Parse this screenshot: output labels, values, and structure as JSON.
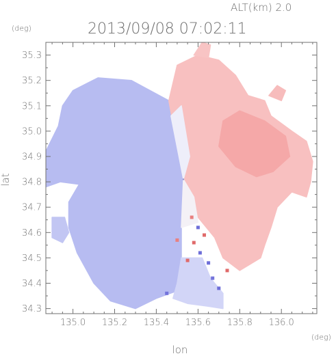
{
  "chart_data": {
    "type": "heatmap",
    "title": "2013/09/08 07:02:11",
    "altitude_label": "ALT(km) 2.0",
    "xlabel": "lon",
    "ylabel": "lat",
    "x_unit": "(deg)",
    "y_unit": "(deg)",
    "xlim": [
      134.87,
      136.17
    ],
    "ylim": [
      34.28,
      35.35
    ],
    "x_ticks": [
      135.0,
      135.2,
      135.4,
      135.6,
      135.8,
      136.0
    ],
    "y_ticks": [
      34.3,
      34.4,
      34.5,
      34.6,
      34.7,
      34.8,
      34.9,
      35.0,
      35.1,
      35.2,
      35.3
    ],
    "grid": false,
    "legend": "none",
    "radar_center": {
      "lon": 135.53,
      "lat": 34.81
    },
    "colors": {
      "approaching_blue": "#a9b0ee",
      "receding_red": "#f5a8a8",
      "near_zero": "#f2f2fa",
      "axes": "#6f6f6f"
    },
    "echo_regions": [
      {
        "name": "blue-west-main",
        "color": "#b7bcf1",
        "points": [
          [
            135.0,
            35.16
          ],
          [
            135.12,
            35.21
          ],
          [
            135.28,
            35.2
          ],
          [
            135.46,
            35.12
          ],
          [
            135.53,
            34.81
          ],
          [
            135.52,
            34.7
          ],
          [
            135.52,
            34.5
          ],
          [
            135.5,
            34.37
          ],
          [
            135.4,
            34.34
          ],
          [
            135.3,
            34.3
          ],
          [
            135.18,
            34.33
          ],
          [
            135.1,
            34.4
          ],
          [
            135.02,
            34.52
          ],
          [
            134.98,
            34.62
          ],
          [
            134.98,
            34.72
          ],
          [
            135.03,
            34.79
          ],
          [
            134.94,
            34.8
          ],
          [
            134.87,
            34.78
          ],
          [
            134.87,
            34.92
          ],
          [
            134.93,
            35.02
          ],
          [
            134.95,
            35.1
          ]
        ]
      },
      {
        "name": "blue-south-pale",
        "color": "#d2d5f7",
        "points": [
          [
            135.52,
            34.5
          ],
          [
            135.62,
            34.5
          ],
          [
            135.66,
            34.42
          ],
          [
            135.72,
            34.36
          ],
          [
            135.72,
            34.3
          ],
          [
            135.64,
            34.31
          ],
          [
            135.55,
            34.32
          ],
          [
            135.48,
            34.34
          ],
          [
            135.5,
            34.4
          ]
        ]
      },
      {
        "name": "blue-sw-fragment",
        "color": "#c2c6f3",
        "points": [
          [
            134.9,
            34.66
          ],
          [
            134.96,
            34.66
          ],
          [
            134.98,
            34.6
          ],
          [
            134.95,
            34.56
          ],
          [
            134.9,
            34.58
          ]
        ]
      },
      {
        "name": "red-east-main",
        "color": "#f8c0c0",
        "points": [
          [
            135.46,
            35.12
          ],
          [
            135.5,
            35.26
          ],
          [
            135.6,
            35.3
          ],
          [
            135.7,
            35.28
          ],
          [
            135.78,
            35.22
          ],
          [
            135.84,
            35.14
          ],
          [
            135.92,
            35.12
          ],
          [
            135.95,
            35.06
          ],
          [
            136.05,
            35.0
          ],
          [
            136.12,
            34.96
          ],
          [
            136.15,
            34.88
          ],
          [
            136.14,
            34.8
          ],
          [
            136.12,
            34.74
          ],
          [
            136.05,
            34.76
          ],
          [
            135.98,
            34.7
          ],
          [
            135.95,
            34.62
          ],
          [
            135.92,
            34.55
          ],
          [
            135.9,
            34.5
          ],
          [
            135.8,
            34.45
          ],
          [
            135.72,
            34.5
          ],
          [
            135.68,
            34.58
          ],
          [
            135.62,
            34.64
          ],
          [
            135.56,
            34.7
          ],
          [
            135.53,
            34.81
          ]
        ]
      },
      {
        "name": "red-east-core",
        "color": "#f5a8a8",
        "points": [
          [
            135.72,
            35.04
          ],
          [
            135.8,
            35.08
          ],
          [
            135.92,
            35.04
          ],
          [
            136.02,
            34.98
          ],
          [
            136.04,
            34.9
          ],
          [
            135.96,
            34.84
          ],
          [
            135.88,
            34.82
          ],
          [
            135.78,
            34.86
          ],
          [
            135.7,
            34.94
          ]
        ]
      },
      {
        "name": "red-north-fragment",
        "color": "#f8c4c4",
        "points": [
          [
            135.58,
            35.3
          ],
          [
            135.62,
            35.35
          ],
          [
            135.66,
            35.34
          ],
          [
            135.65,
            35.29
          ]
        ]
      },
      {
        "name": "red-ne-fragment",
        "color": "#f7bcbc",
        "points": [
          [
            135.94,
            35.14
          ],
          [
            135.98,
            35.18
          ],
          [
            136.02,
            35.16
          ],
          [
            136.0,
            35.12
          ]
        ]
      },
      {
        "name": "transition-pale-band",
        "color": "#eeeefa",
        "points": [
          [
            135.53,
            34.81
          ],
          [
            135.47,
            35.06
          ],
          [
            135.52,
            35.1
          ],
          [
            135.56,
            34.9
          ]
        ]
      },
      {
        "name": "transition-south-band",
        "color": "#f4f1f6",
        "points": [
          [
            135.53,
            34.81
          ],
          [
            135.52,
            34.62
          ],
          [
            135.6,
            34.64
          ],
          [
            135.58,
            34.74
          ]
        ]
      }
    ],
    "speckle_cells": [
      {
        "lon": 135.6,
        "lat": 34.62,
        "color": "#6e6ed8"
      },
      {
        "lon": 135.63,
        "lat": 34.59,
        "color": "#e06a6a"
      },
      {
        "lon": 135.58,
        "lat": 34.56,
        "color": "#e06a6a"
      },
      {
        "lon": 135.61,
        "lat": 34.52,
        "color": "#6e6ed8"
      },
      {
        "lon": 135.55,
        "lat": 34.49,
        "color": "#e06a6a"
      },
      {
        "lon": 135.65,
        "lat": 34.48,
        "color": "#6e6ed8"
      },
      {
        "lon": 135.5,
        "lat": 34.57,
        "color": "#e88080"
      },
      {
        "lon": 135.67,
        "lat": 34.42,
        "color": "#7474db"
      },
      {
        "lon": 135.7,
        "lat": 34.38,
        "color": "#6e6ed8"
      },
      {
        "lon": 135.45,
        "lat": 34.36,
        "color": "#7474db"
      },
      {
        "lon": 135.57,
        "lat": 34.66,
        "color": "#e88080"
      },
      {
        "lon": 135.74,
        "lat": 34.45,
        "color": "#e06a6a"
      }
    ]
  }
}
